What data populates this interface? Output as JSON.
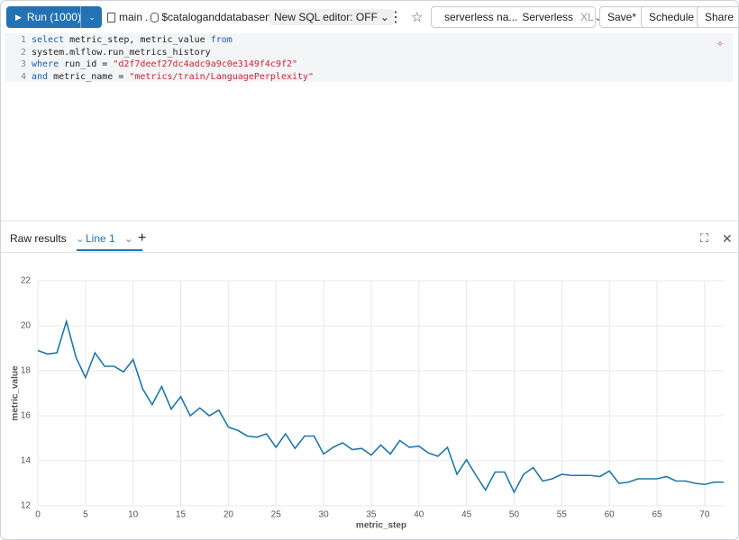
{
  "toolbar": {
    "run": "Run (1000)",
    "catalog": "main",
    "schema": "$cataloganddatabasena...",
    "editor_toggle": "New SQL editor: OFF",
    "warehouse": "serverless na...",
    "warehouse_type": "Serverless",
    "size": "XL",
    "save": "Save*",
    "schedule": "Schedule",
    "share": "Share"
  },
  "editor": {
    "lines": [
      {
        "number": "1",
        "tokens": [
          {
            "text": "select",
            "color": "#1a5fb4"
          },
          {
            "text": " metric_step, metric_value ",
            "color": "#222222"
          },
          {
            "text": "from",
            "color": "#1a5fb4"
          }
        ]
      },
      {
        "number": "2",
        "tokens": [
          {
            "text": "system.mlflow.run_metrics_history",
            "color": "#222222"
          }
        ]
      },
      {
        "number": "3",
        "tokens": [
          {
            "text": "where",
            "color": "#1a5fb4"
          },
          {
            "text": " run_id = ",
            "color": "#222222"
          },
          {
            "text": "\"d2f7deef27dc4adc9a9c0e3149f4c9f2\"",
            "color": "#d1242f"
          }
        ]
      },
      {
        "number": "4",
        "tokens": [
          {
            "text": "and",
            "color": "#1a5fb4"
          },
          {
            "text": " metric_name = ",
            "color": "#222222"
          },
          {
            "text": "\"metrics/train/LanguagePerplexity\"",
            "color": "#d1242f"
          }
        ]
      }
    ]
  },
  "tabs": {
    "raw": "Raw results",
    "line": "Line 1"
  },
  "chart_data": {
    "type": "line",
    "x_label": "metric_step",
    "y_label": "metric_value",
    "x": [
      0,
      1,
      2,
      3,
      4,
      5,
      6,
      7,
      8,
      9,
      10,
      11,
      12,
      13,
      14,
      15,
      16,
      17,
      18,
      19,
      20,
      21,
      22,
      23,
      24,
      25,
      26,
      27,
      28,
      29,
      30,
      31,
      32,
      33,
      34,
      35,
      36,
      37,
      38,
      39,
      40,
      41,
      42,
      43,
      44,
      45,
      46,
      47,
      48,
      49,
      50,
      51,
      52,
      53,
      54,
      55,
      56,
      57,
      58,
      59,
      60,
      61,
      62,
      63,
      64,
      65,
      66,
      67,
      68,
      69,
      70,
      71,
      72
    ],
    "series": [
      {
        "name": "metric_value",
        "color": "#1f78a8",
        "values": [
          18.9,
          18.75,
          18.8,
          20.2,
          18.6,
          17.7,
          18.8,
          18.2,
          18.2,
          17.95,
          18.5,
          17.2,
          16.5,
          17.3,
          16.3,
          16.85,
          16.0,
          16.35,
          16.0,
          16.25,
          15.5,
          15.35,
          15.1,
          15.05,
          15.2,
          14.6,
          15.2,
          14.55,
          15.1,
          15.1,
          14.3,
          14.6,
          14.8,
          14.5,
          14.55,
          14.25,
          14.7,
          14.3,
          14.9,
          14.6,
          14.65,
          14.35,
          14.2,
          14.6,
          13.4,
          14.05,
          13.35,
          12.7,
          13.5,
          13.5,
          12.6,
          13.4,
          13.7,
          13.1,
          13.2,
          13.4,
          13.35,
          13.35,
          13.35,
          13.3,
          13.55,
          13.0,
          13.05,
          13.2,
          13.2,
          13.2,
          13.3,
          13.1,
          13.1,
          13.0,
          12.95,
          13.05,
          13.05
        ]
      }
    ],
    "xlim": [
      0,
      72
    ],
    "ylim": [
      12,
      22
    ],
    "xticks": [
      0,
      5,
      10,
      15,
      20,
      25,
      30,
      35,
      40,
      45,
      50,
      55,
      60,
      65,
      70
    ],
    "yticks": [
      12,
      14,
      16,
      18,
      20,
      22
    ],
    "grid": true
  }
}
